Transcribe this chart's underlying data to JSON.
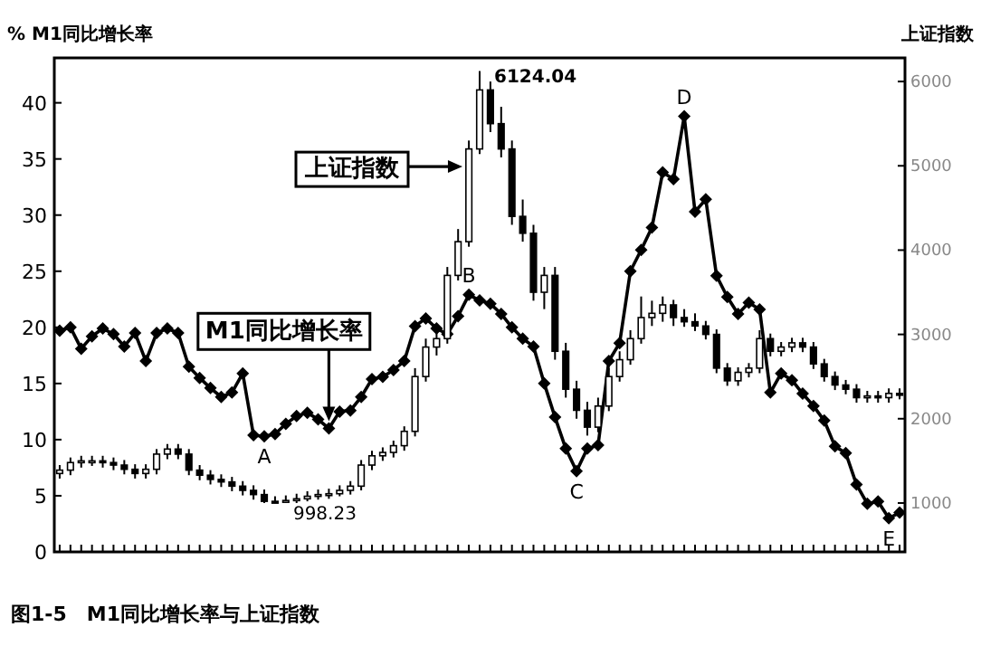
{
  "chart_data": {
    "type": "candlestick",
    "ylabel": "% M1同比增长率",
    "y2label": "上证指数",
    "annotations": [
      "图1-5　M1同比增长率与上证指数",
      {
        "text": "A",
        "y": 10.3
      },
      {
        "text": "B",
        "y": 22.9
      },
      {
        "text": "C",
        "y": 7.2
      },
      {
        "text": "D",
        "y": 38.8
      },
      {
        "text": "E",
        "y": 3.0
      },
      "6124.04",
      "998.23",
      "上证指数"
    ],
    "categories": [
      null,
      null,
      null,
      null,
      null,
      null,
      null,
      null,
      null,
      null,
      null,
      null,
      null,
      null,
      null,
      null,
      null,
      null,
      null,
      null,
      null,
      null,
      null,
      null,
      null,
      null,
      null,
      null,
      null,
      null,
      null,
      null,
      null,
      null,
      null,
      null,
      null,
      null,
      null,
      null,
      null,
      null,
      null,
      null,
      null,
      null,
      null,
      null,
      null,
      null,
      null,
      null,
      null,
      null,
      null,
      null,
      null,
      null,
      null,
      null,
      null,
      null,
      null,
      null,
      null,
      null,
      null,
      null,
      null,
      null,
      null,
      null,
      null,
      null,
      null,
      null,
      null,
      null,
      null
    ],
    "ylim": [
      0,
      44
    ],
    "yticks": [
      0,
      5,
      10,
      15,
      20,
      25,
      30,
      35,
      40
    ],
    "y2lim": [
      420,
      6280
    ],
    "y2ticks": [
      1000,
      2000,
      3000,
      4000,
      5000,
      6000
    ],
    "grid": false,
    "legend": "bottom left",
    "series": [
      {
        "type": "candlestick",
        "axis": "y2",
        "color": "#000000",
        "ohlc": [
          [
            1350,
            1450,
            1290,
            1390
          ],
          [
            1390,
            1540,
            1330,
            1480
          ],
          [
            1480,
            1560,
            1420,
            1500
          ],
          [
            1500,
            1560,
            1440,
            1500
          ],
          [
            1500,
            1560,
            1420,
            1480
          ],
          [
            1480,
            1540,
            1390,
            1450
          ],
          [
            1450,
            1510,
            1340,
            1400
          ],
          [
            1400,
            1460,
            1290,
            1350
          ],
          [
            1350,
            1460,
            1290,
            1400
          ],
          [
            1400,
            1640,
            1340,
            1580
          ],
          [
            1580,
            1700,
            1520,
            1640
          ],
          [
            1640,
            1700,
            1520,
            1580
          ],
          [
            1580,
            1640,
            1330,
            1390
          ],
          [
            1390,
            1450,
            1270,
            1330
          ],
          [
            1330,
            1390,
            1220,
            1280
          ],
          [
            1280,
            1340,
            1190,
            1250
          ],
          [
            1250,
            1310,
            1140,
            1200
          ],
          [
            1200,
            1260,
            1090,
            1150
          ],
          [
            1150,
            1210,
            1040,
            1100
          ],
          [
            1100,
            1160,
            1000,
            1020
          ],
          [
            1020,
            1080,
            998.23,
            1010
          ],
          [
            1010,
            1090,
            1000,
            1030
          ],
          [
            1030,
            1110,
            1000,
            1050
          ],
          [
            1050,
            1140,
            1020,
            1080
          ],
          [
            1080,
            1160,
            1040,
            1100
          ],
          [
            1100,
            1170,
            1050,
            1110
          ],
          [
            1110,
            1210,
            1080,
            1150
          ],
          [
            1150,
            1260,
            1100,
            1200
          ],
          [
            1200,
            1510,
            1150,
            1450
          ],
          [
            1450,
            1620,
            1390,
            1560
          ],
          [
            1560,
            1660,
            1500,
            1600
          ],
          [
            1600,
            1740,
            1540,
            1680
          ],
          [
            1680,
            1910,
            1620,
            1850
          ],
          [
            1850,
            2600,
            1790,
            2500
          ],
          [
            2500,
            2950,
            2440,
            2850
          ],
          [
            2850,
            3050,
            2750,
            2950
          ],
          [
            2950,
            3800,
            2890,
            3700
          ],
          [
            3700,
            4250,
            3640,
            4100
          ],
          [
            4100,
            5300,
            4040,
            5200
          ],
          [
            5200,
            6124.04,
            5140,
            5900
          ],
          [
            5900,
            6000,
            5400,
            5500
          ],
          [
            5500,
            5700,
            5100,
            5200
          ],
          [
            5200,
            5300,
            4300,
            4400
          ],
          [
            4400,
            4600,
            4100,
            4200
          ],
          [
            4200,
            4300,
            3400,
            3500
          ],
          [
            3500,
            3800,
            3300,
            3700
          ],
          [
            3700,
            3800,
            2700,
            2800
          ],
          [
            2800,
            2900,
            2250,
            2350
          ],
          [
            2350,
            2450,
            2000,
            2100
          ],
          [
            2100,
            2200,
            1800,
            1900
          ],
          [
            1900,
            2250,
            1840,
            2150
          ],
          [
            2150,
            2600,
            2090,
            2500
          ],
          [
            2500,
            2800,
            2440,
            2700
          ],
          [
            2700,
            3050,
            2640,
            2950
          ],
          [
            2950,
            3450,
            2890,
            3200
          ],
          [
            3200,
            3400,
            3100,
            3250
          ],
          [
            3250,
            3450,
            3150,
            3350
          ],
          [
            3350,
            3410,
            3100,
            3200
          ],
          [
            3200,
            3300,
            3090,
            3150
          ],
          [
            3150,
            3250,
            3040,
            3100
          ],
          [
            3100,
            3160,
            2940,
            3000
          ],
          [
            3000,
            3060,
            2540,
            2600
          ],
          [
            2600,
            2660,
            2390,
            2450
          ],
          [
            2450,
            2610,
            2390,
            2550
          ],
          [
            2550,
            2660,
            2490,
            2600
          ],
          [
            2600,
            3050,
            2540,
            2950
          ],
          [
            2950,
            3010,
            2740,
            2800
          ],
          [
            2800,
            2910,
            2740,
            2850
          ],
          [
            2850,
            2960,
            2790,
            2900
          ],
          [
            2900,
            2960,
            2790,
            2850
          ],
          [
            2850,
            2910,
            2590,
            2650
          ],
          [
            2650,
            2710,
            2440,
            2500
          ],
          [
            2500,
            2560,
            2340,
            2400
          ],
          [
            2400,
            2460,
            2290,
            2350
          ],
          [
            2350,
            2410,
            2190,
            2250
          ],
          [
            2250,
            2330,
            2190,
            2270
          ],
          [
            2270,
            2330,
            2190,
            2250
          ],
          [
            2250,
            2360,
            2190,
            2300
          ],
          [
            2300,
            2360,
            2230,
            2290
          ]
        ]
      },
      {
        "name": "M1同比增长率",
        "type": "line",
        "color": "#000000",
        "marker": "diamond",
        "line_style": "solid",
        "values": [
          19.7,
          20.0,
          18.1,
          19.2,
          19.9,
          19.4,
          18.3,
          19.5,
          17.0,
          19.5,
          19.9,
          19.5,
          16.5,
          15.5,
          14.6,
          13.8,
          14.2,
          15.9,
          10.4,
          10.3,
          10.5,
          11.4,
          12.1,
          12.4,
          11.8,
          11.0,
          12.5,
          12.6,
          13.8,
          15.4,
          15.6,
          16.2,
          17.0,
          20.1,
          20.8,
          19.9,
          19.4,
          21.0,
          22.9,
          22.4,
          22.1,
          21.2,
          20.0,
          19.0,
          18.3,
          15.0,
          12.0,
          9.2,
          7.2,
          9.2,
          9.5,
          17.0,
          18.6,
          25.0,
          26.9,
          28.9,
          33.8,
          33.2,
          38.8,
          30.3,
          31.4,
          24.6,
          22.7,
          21.2,
          22.2,
          21.6,
          14.2,
          15.9,
          15.3,
          14.1,
          13.0,
          11.7,
          9.4,
          8.8,
          6.0,
          4.3,
          4.5,
          3.0,
          3.5
        ]
      }
    ]
  }
}
